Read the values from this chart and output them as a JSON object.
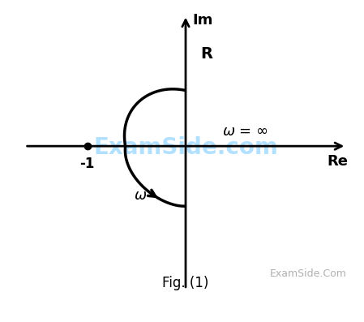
{
  "title": "Fig. (1)",
  "xlabel_re": "Re",
  "ylabel_im": "Im",
  "label_R": "R",
  "label_omega_inf": "ω = ∞",
  "label_omega": "ω",
  "label_minus1": "-1",
  "watermark": "ExamSide.Com",
  "watermark_light": "ExamSide.com",
  "bg_color": "#ffffff",
  "axis_color": "#000000",
  "curve_color": "#000000",
  "dot_color": "#000000",
  "watermark_color": "#aaddff",
  "watermark2_color": "#b0b0b0",
  "xlim": [
    -2.5,
    2.5
  ],
  "ylim": [
    -2.2,
    2.0
  ],
  "figsize": [
    4.49,
    3.97
  ],
  "dpi": 100
}
